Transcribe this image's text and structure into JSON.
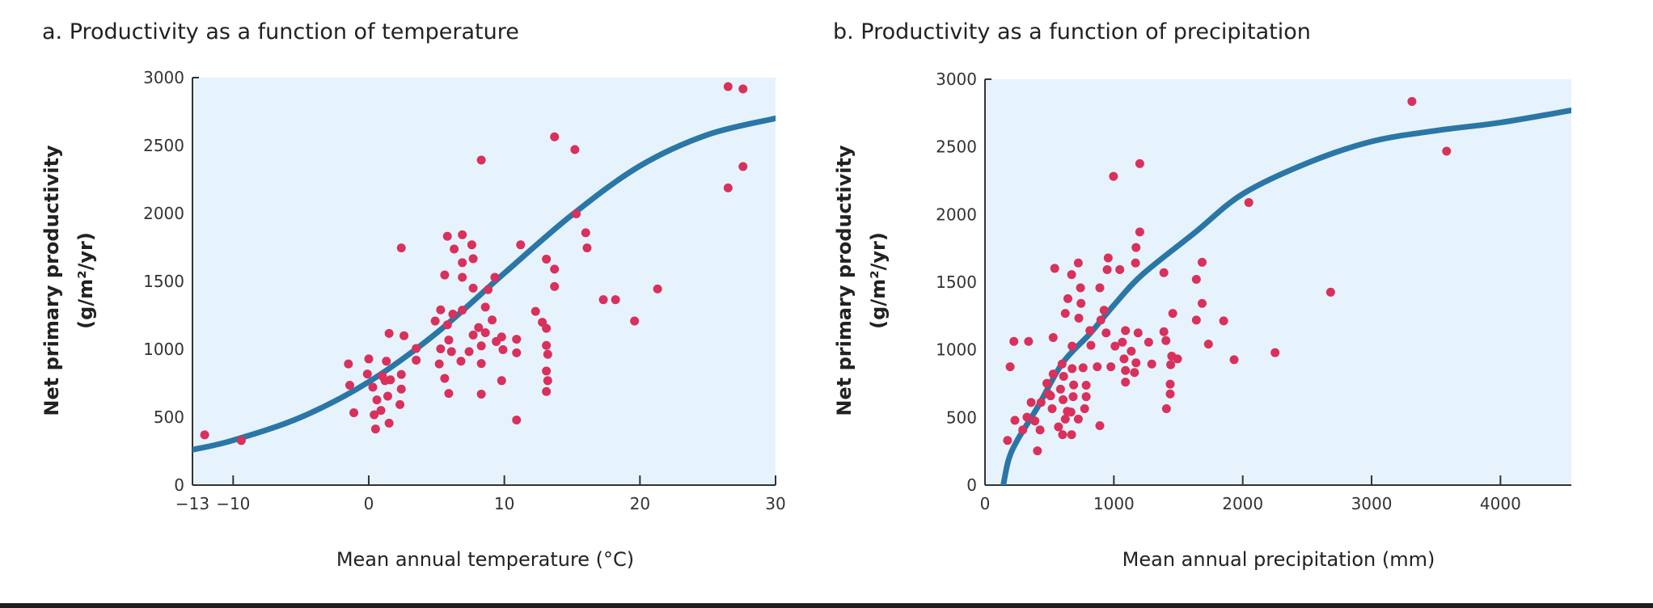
{
  "colors": {
    "plot_bg": "#e7f3fc",
    "curve": "#2a76a6",
    "points": "#d9305c",
    "axis": "#333333"
  },
  "chart_data": [
    {
      "type": "scatter",
      "title": "a.  Productivity as a function of temperature",
      "xlabel": "Mean annual temperature (°C)",
      "ylabel": "Net primary productivity",
      "ylabel2": "(g/m²/yr)",
      "xlim": [
        -13,
        30
      ],
      "ylim": [
        0,
        3000
      ],
      "xticks": [
        -13,
        -10,
        0,
        10,
        20,
        30
      ],
      "xtick_labels": [
        "−13",
        "−10",
        "0",
        "10",
        "20",
        "30"
      ],
      "yticks": [
        0,
        500,
        1000,
        1500,
        2000,
        2500,
        3000
      ],
      "ytick_labels": [
        "0",
        "500",
        "1000",
        "1500",
        "2000",
        "2500",
        "3000"
      ],
      "grid": false,
      "points": [
        [
          -12.1,
          370
        ],
        [
          -9.4,
          328
        ],
        [
          -1.5,
          892
        ],
        [
          -1.4,
          735
        ],
        [
          -1.1,
          533
        ],
        [
          0.0,
          929
        ],
        [
          -0.1,
          818
        ],
        [
          0.3,
          721
        ],
        [
          0.4,
          518
        ],
        [
          0.5,
          413
        ],
        [
          0.6,
          627
        ],
        [
          0.9,
          550
        ],
        [
          1.0,
          803
        ],
        [
          1.2,
          769
        ],
        [
          1.3,
          912
        ],
        [
          1.4,
          655
        ],
        [
          1.5,
          456
        ],
        [
          1.5,
          1117
        ],
        [
          1.6,
          775
        ],
        [
          2.3,
          593
        ],
        [
          2.4,
          707
        ],
        [
          2.4,
          815
        ],
        [
          2.4,
          1746
        ],
        [
          2.6,
          1100
        ],
        [
          3.5,
          1006
        ],
        [
          3.5,
          920
        ],
        [
          4.9,
          1208
        ],
        [
          5.2,
          892
        ],
        [
          5.3,
          1290
        ],
        [
          5.3,
          1003
        ],
        [
          5.6,
          786
        ],
        [
          5.6,
          1547
        ],
        [
          5.8,
          1832
        ],
        [
          5.8,
          1180
        ],
        [
          5.9,
          675
        ],
        [
          5.9,
          1068
        ],
        [
          6.1,
          983
        ],
        [
          6.2,
          1259
        ],
        [
          6.3,
          1738
        ],
        [
          6.8,
          912
        ],
        [
          6.9,
          1530
        ],
        [
          6.9,
          1638
        ],
        [
          6.9,
          1843
        ],
        [
          6.9,
          1288
        ],
        [
          7.4,
          983
        ],
        [
          7.6,
          1769
        ],
        [
          7.7,
          1667
        ],
        [
          7.7,
          1105
        ],
        [
          7.7,
          1450
        ],
        [
          8.1,
          1160
        ],
        [
          8.3,
          2393
        ],
        [
          8.3,
          895
        ],
        [
          8.3,
          1025
        ],
        [
          8.3,
          670
        ],
        [
          8.6,
          1122
        ],
        [
          8.6,
          1310
        ],
        [
          8.8,
          1439
        ],
        [
          9.1,
          1216
        ],
        [
          9.3,
          1530
        ],
        [
          9.4,
          1057
        ],
        [
          9.8,
          1091
        ],
        [
          9.8,
          769
        ],
        [
          9.9,
          997
        ],
        [
          10.9,
          1074
        ],
        [
          10.9,
          974
        ],
        [
          10.9,
          479
        ],
        [
          11.2,
          1769
        ],
        [
          12.3,
          1279
        ],
        [
          12.8,
          1199
        ],
        [
          13.1,
          1664
        ],
        [
          13.1,
          1154
        ],
        [
          13.1,
          1028
        ],
        [
          13.2,
          963
        ],
        [
          13.1,
          840
        ],
        [
          13.2,
          769
        ],
        [
          13.1,
          689
        ],
        [
          13.7,
          2564
        ],
        [
          13.7,
          1590
        ],
        [
          13.7,
          1462
        ],
        [
          15.2,
          2470
        ],
        [
          15.3,
          1997
        ],
        [
          16.0,
          1858
        ],
        [
          16.1,
          1746
        ],
        [
          17.3,
          1365
        ],
        [
          18.2,
          1365
        ],
        [
          19.6,
          1208
        ],
        [
          21.3,
          1444
        ],
        [
          26.5,
          2934
        ],
        [
          26.5,
          2188
        ],
        [
          27.6,
          2917
        ],
        [
          27.6,
          2345
        ]
      ],
      "curve": [
        [
          -13,
          260
        ],
        [
          -10,
          330
        ],
        [
          -5,
          500
        ],
        [
          0,
          760
        ],
        [
          5,
          1120
        ],
        [
          10,
          1560
        ],
        [
          15,
          1990
        ],
        [
          20,
          2350
        ],
        [
          25,
          2580
        ],
        [
          30,
          2700
        ]
      ]
    },
    {
      "type": "scatter",
      "title": "b.  Productivity as a function of precipitation",
      "xlabel": "Mean annual precipitation (mm)",
      "ylabel": "Net primary productivity",
      "ylabel2": "(g/m²/yr)",
      "xlim": [
        0,
        4550
      ],
      "ylim": [
        0,
        3000
      ],
      "xticks": [
        0,
        1000,
        2000,
        3000,
        4000
      ],
      "xtick_labels": [
        "0",
        "1000",
        "2000",
        "3000",
        "4000"
      ],
      "yticks": [
        0,
        500,
        1000,
        1500,
        2000,
        2500,
        3000
      ],
      "ytick_labels": [
        "0",
        "500",
        "1000",
        "1500",
        "2000",
        "2500",
        "3000"
      ],
      "grid": false,
      "points": [
        [
          175,
          330
        ],
        [
          195,
          875
        ],
        [
          224,
          1062
        ],
        [
          232,
          479
        ],
        [
          293,
          408
        ],
        [
          326,
          502
        ],
        [
          338,
          1062
        ],
        [
          358,
          611
        ],
        [
          387,
          474
        ],
        [
          407,
          253
        ],
        [
          427,
          408
        ],
        [
          435,
          611
        ],
        [
          480,
          752
        ],
        [
          492,
          674
        ],
        [
          509,
          660
        ],
        [
          521,
          565
        ],
        [
          529,
          821
        ],
        [
          529,
          1091
        ],
        [
          541,
          1602
        ],
        [
          570,
          430
        ],
        [
          586,
          709
        ],
        [
          598,
          895
        ],
        [
          602,
          373
        ],
        [
          606,
          631
        ],
        [
          610,
          804
        ],
        [
          623,
          488
        ],
        [
          639,
          545
        ],
        [
          643,
          1378
        ],
        [
          623,
          1269
        ],
        [
          672,
          373
        ],
        [
          672,
          1556
        ],
        [
          667,
          540
        ],
        [
          676,
          1027
        ],
        [
          676,
          861
        ],
        [
          684,
          654
        ],
        [
          688,
          740
        ],
        [
          724,
          1642
        ],
        [
          724,
          488
        ],
        [
          728,
          1234
        ],
        [
          741,
          1458
        ],
        [
          745,
          1343
        ],
        [
          761,
          867
        ],
        [
          773,
          565
        ],
        [
          785,
          654
        ],
        [
          785,
          738
        ],
        [
          814,
          1142
        ],
        [
          822,
          1033
        ],
        [
          871,
          875
        ],
        [
          891,
          1458
        ],
        [
          891,
          439
        ],
        [
          899,
          1220
        ],
        [
          924,
          1292
        ],
        [
          940,
          1125
        ],
        [
          956,
          1679
        ],
        [
          948,
          1593
        ],
        [
          977,
          875
        ],
        [
          997,
          2282
        ],
        [
          1009,
          1027
        ],
        [
          1046,
          1593
        ],
        [
          1066,
          1056
        ],
        [
          1079,
          933
        ],
        [
          1090,
          1142
        ],
        [
          1090,
          761
        ],
        [
          1090,
          847
        ],
        [
          1135,
          990
        ],
        [
          1160,
          832
        ],
        [
          1168,
          1642
        ],
        [
          1172,
          1756
        ],
        [
          1172,
          904
        ],
        [
          1188,
          1125
        ],
        [
          1201,
          1871
        ],
        [
          1201,
          2376
        ],
        [
          1270,
          1056
        ],
        [
          1294,
          895
        ],
        [
          1388,
          1570
        ],
        [
          1388,
          1134
        ],
        [
          1404,
          1068
        ],
        [
          1408,
          565
        ],
        [
          1437,
          746
        ],
        [
          1437,
          674
        ],
        [
          1441,
          890
        ],
        [
          1449,
          953
        ],
        [
          1457,
          1269
        ],
        [
          1494,
          933
        ],
        [
          1640,
          1220
        ],
        [
          1640,
          1521
        ],
        [
          1685,
          1647
        ],
        [
          1685,
          1343
        ],
        [
          1734,
          1042
        ],
        [
          1852,
          1214
        ],
        [
          1933,
          927
        ],
        [
          2047,
          2089
        ],
        [
          2251,
          979
        ],
        [
          2682,
          1426
        ],
        [
          3313,
          2836
        ],
        [
          3582,
          2468
        ]
      ],
      "curve": [
        [
          142,
          0
        ],
        [
          183,
          187
        ],
        [
          250,
          330
        ],
        [
          407,
          574
        ],
        [
          600,
          900
        ],
        [
          814,
          1119
        ],
        [
          1000,
          1330
        ],
        [
          1221,
          1556
        ],
        [
          1628,
          1866
        ],
        [
          2000,
          2152
        ],
        [
          2500,
          2380
        ],
        [
          3000,
          2540
        ],
        [
          3500,
          2620
        ],
        [
          4000,
          2680
        ],
        [
          4550,
          2770
        ]
      ]
    }
  ]
}
